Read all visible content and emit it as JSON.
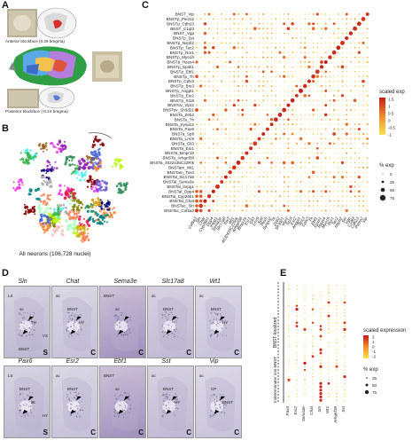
{
  "panels": {
    "A": "A",
    "B": "B",
    "C": "C",
    "D": "D",
    "E": "E"
  },
  "panelA": {
    "anterior": "Anterior blockface (0.26 bregma)",
    "posterior": "Posterior blockface (-0.24 bregma)"
  },
  "panelB": {
    "caption": "All neurons (106,728 nuclei)"
  },
  "panelC": {
    "rows": [
      "BNST_Vip",
      "BNSTp_Piezo2",
      "BNSTp_Cdh23",
      "BNST_C1ql3",
      "BNST_Vgp",
      "BNSTp_Sst",
      "BNSTp_Nxph2",
      "BNSTp_Tac2",
      "BNSTp_Ror1",
      "BNSTp_Myo1h",
      "BNSTp_Haus4",
      "BNSTp_Epsti1",
      "BNSTp_Ebf1",
      "BNSTp_Th",
      "BNSTp_Cplx3",
      "BNSTp_Brs3",
      "BNSTp_Angpt1",
      "BNSTp_Esr2",
      "BNSTp_St18",
      "BNSTov_Vipr2",
      "BNSTov_Sh3d21",
      "BNSTa_Zeb2",
      "BNSTa_Th",
      "BNSTa_Synpo2",
      "BNSTa_Pax6",
      "BNSTa_Sp8",
      "BNSTa_Lrrc9",
      "BNSTa_Gli3",
      "BNSTa_Esr1",
      "BNSTa_Bmpr1b",
      "BNSTa_Arhgef38",
      "BNSTa_4632435C22Rik",
      "BNSTam_Wt1",
      "BNSTam_Tox3",
      "BNSTal_Slc17a8",
      "BNSTal_Sema3e",
      "BNSTal_Impg1",
      "BNSTal_Dpp4",
      "BNSTal_Cyp26b1",
      "BNSTal_Chat",
      "BNSTac_Sln",
      "BNSTac_Col5a3"
    ],
    "cols": [
      "Col5a3",
      "Sln",
      "Chat",
      "Cyp26b1",
      "Dpp4",
      "Impg1",
      "Sema3e",
      "Slc17a8",
      "Tox3",
      "Wt1",
      "4632435C22Rik",
      "Arhgef38",
      "Bmpr1b",
      "Esr1",
      "Gli3",
      "Lrrc9",
      "Sp8",
      "Pax6",
      "Synpo2",
      "Th",
      "Zeb2",
      "Sh3d21",
      "Vipr2",
      "St18",
      "Esr2",
      "Angpt1",
      "Brs3",
      "Cplx3",
      "Th",
      "Ebf1",
      "Epsti1",
      "Haus4",
      "Myo1h",
      "Ror1",
      "Tac2",
      "Nxph2",
      "Sst",
      "Vgp",
      "C1ql3",
      "Cdh23",
      "Piezo2",
      "Vip"
    ],
    "legend_title": "scaled exp",
    "legend_ticks": [
      "1.5",
      "1",
      "0.5",
      "0",
      "-0.5",
      "-1"
    ],
    "pct_title": "% exp",
    "pct_ticks": [
      "0",
      "25",
      "50",
      "75"
    ],
    "colors": {
      "high": "#c41a1a",
      "mid": "#f08c2c",
      "low": "#f7e34e"
    }
  },
  "panelD": {
    "row1": [
      {
        "gene": "Sln",
        "corner": "S",
        "labels": [
          "LS",
          "ac",
          "TH",
          "VS",
          "BNST"
        ]
      },
      {
        "gene": "Chat",
        "corner": "C",
        "labels": [
          "ac",
          "BNST",
          "HY"
        ]
      },
      {
        "gene": "Sema3e",
        "corner": "C",
        "labels": [
          "BNST",
          "ac"
        ]
      },
      {
        "gene": "Slc17a8",
        "corner": "C",
        "labels": [
          "ac",
          "BNST"
        ]
      },
      {
        "gene": "Wt1",
        "corner": "C",
        "labels": [
          "ac",
          "BNST",
          "HY"
        ]
      }
    ],
    "row2": [
      {
        "gene": "Pax6",
        "corner": "S",
        "labels": [
          "LS",
          "BNST",
          "ac",
          "HY"
        ]
      },
      {
        "gene": "Esr2",
        "corner": "C",
        "labels": [
          "ac",
          "BNST"
        ]
      },
      {
        "gene": "Ebf1",
        "corner": "C",
        "labels": [
          "BNST",
          "ac"
        ]
      },
      {
        "gene": "Sst",
        "corner": "C",
        "labels": [
          "ac",
          "BNST",
          "HY"
        ]
      },
      {
        "gene": "Vip",
        "corner": "C",
        "labels": [
          "ac",
          "CP",
          "BNST"
        ]
      }
    ]
  },
  "panelE": {
    "group1": "BNST-localized",
    "group2": "Indeterminate/ non-BNST",
    "cols": [
      "Pax6",
      "Esr2",
      "Sema3e",
      "Chat",
      "Sln",
      "Wt1",
      "Arhgef38",
      "Sst"
    ],
    "legend_title": "scaled expression",
    "legend_ticks": [
      "2",
      "1",
      "0",
      "-1",
      "-2"
    ],
    "pct_title": "% exp",
    "pct_ticks": [
      "25",
      "50",
      "75"
    ]
  }
}
